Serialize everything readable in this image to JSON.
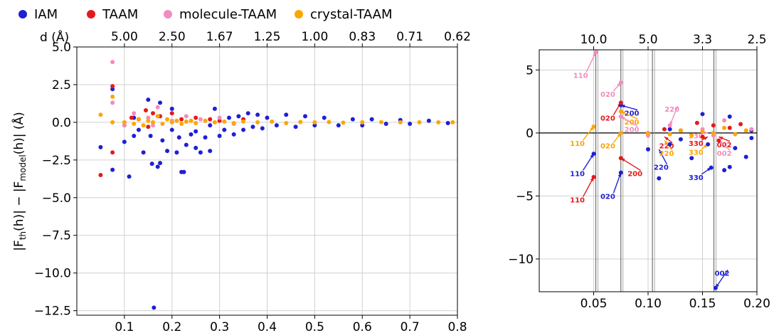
{
  "legend": {
    "entries": [
      {
        "label": "IAM",
        "color": "#1f1fd6"
      },
      {
        "label": "TAAM",
        "color": "#e31a1c"
      },
      {
        "label": "molecule-TAAM",
        "color": "#f28cc0"
      },
      {
        "label": "crystal-TAAM",
        "color": "#ffa500"
      }
    ],
    "placement": "top"
  },
  "chart_data": [
    {
      "type": "scatter",
      "title": "",
      "ylabel_main": "|F",
      "ylabel_sub_th": "th",
      "ylabel_mid": "(h)| − |F",
      "ylabel_sub_model": "model",
      "ylabel_end": "(h)| (Å)",
      "xlabel": "",
      "xlim": [
        0.0,
        0.8
      ],
      "ylim": [
        -12.8,
        5.0
      ],
      "grid": true,
      "x_ticks": [
        "0.1",
        "0.2",
        "0.3",
        "0.4",
        "0.5",
        "0.6",
        "0.7",
        "0.8"
      ],
      "y_ticks": [
        "5.0",
        "2.5",
        "0.0",
        "−2.5",
        "−5.0",
        "−7.5",
        "−10.0",
        "−12.5"
      ],
      "top_axis": {
        "label": "d (Å)",
        "ticks": [
          "5.00",
          "2.50",
          "1.67",
          "1.25",
          "1.00",
          "0.83",
          "0.71",
          "0.62"
        ]
      },
      "series": [
        {
          "name": "IAM",
          "color": "#1f1fd6",
          "points": [
            [
              0.05,
              -1.65
            ],
            [
              0.075,
              -3.15
            ],
            [
              0.075,
              2.2
            ],
            [
              0.1,
              -1.3
            ],
            [
              0.11,
              -3.6
            ],
            [
              0.12,
              -0.9
            ],
            [
              0.12,
              0.3
            ],
            [
              0.13,
              -0.5
            ],
            [
              0.14,
              -2.0
            ],
            [
              0.15,
              1.5
            ],
            [
              0.155,
              -0.9
            ],
            [
              0.158,
              -2.75
            ],
            [
              0.162,
              -12.3
            ],
            [
              0.17,
              -2.95
            ],
            [
              0.175,
              -2.7
            ],
            [
              0.175,
              1.3
            ],
            [
              0.18,
              -1.2
            ],
            [
              0.19,
              -1.9
            ],
            [
              0.2,
              -0.5
            ],
            [
              0.2,
              0.9
            ],
            [
              0.21,
              -2.0
            ],
            [
              0.215,
              -1.0
            ],
            [
              0.22,
              -3.3
            ],
            [
              0.225,
              -3.3
            ],
            [
              0.23,
              -1.5
            ],
            [
              0.24,
              -0.8
            ],
            [
              0.25,
              -0.6
            ],
            [
              0.25,
              -1.7
            ],
            [
              0.26,
              -2.0
            ],
            [
              0.27,
              -1.0
            ],
            [
              0.28,
              -0.2
            ],
            [
              0.28,
              -1.9
            ],
            [
              0.29,
              0.9
            ],
            [
              0.3,
              -0.9
            ],
            [
              0.31,
              -0.5
            ],
            [
              0.32,
              0.3
            ],
            [
              0.33,
              -0.8
            ],
            [
              0.34,
              0.4
            ],
            [
              0.35,
              -0.5
            ],
            [
              0.36,
              0.6
            ],
            [
              0.37,
              -0.3
            ],
            [
              0.38,
              0.5
            ],
            [
              0.39,
              -0.4
            ],
            [
              0.4,
              0.3
            ],
            [
              0.42,
              -0.2
            ],
            [
              0.44,
              0.5
            ],
            [
              0.46,
              -0.3
            ],
            [
              0.48,
              0.4
            ],
            [
              0.5,
              -0.2
            ],
            [
              0.52,
              0.3
            ],
            [
              0.55,
              -0.2
            ],
            [
              0.58,
              0.2
            ],
            [
              0.6,
              -0.2
            ],
            [
              0.62,
              0.2
            ],
            [
              0.65,
              -0.1
            ],
            [
              0.68,
              0.15
            ],
            [
              0.7,
              -0.1
            ],
            [
              0.74,
              0.1
            ],
            [
              0.78,
              -0.05
            ]
          ]
        },
        {
          "name": "TAAM",
          "color": "#e31a1c",
          "points": [
            [
              0.05,
              -3.5
            ],
            [
              0.075,
              2.4
            ],
            [
              0.075,
              -2.0
            ],
            [
              0.1,
              -0.2
            ],
            [
              0.115,
              0.3
            ],
            [
              0.13,
              0.2
            ],
            [
              0.145,
              0.8
            ],
            [
              0.15,
              -0.3
            ],
            [
              0.16,
              0.6
            ],
            [
              0.175,
              0.4
            ],
            [
              0.2,
              0.6
            ],
            [
              0.22,
              0.2
            ],
            [
              0.25,
              0.3
            ],
            [
              0.28,
              0.2
            ],
            [
              0.3,
              0.1
            ],
            [
              0.35,
              0.2
            ]
          ]
        },
        {
          "name": "molecule-TAAM",
          "color": "#f28cc0",
          "points": [
            [
              0.075,
              4.0
            ],
            [
              0.075,
              1.3
            ],
            [
              0.1,
              -0.2
            ],
            [
              0.12,
              0.6
            ],
            [
              0.15,
              0.3
            ],
            [
              0.16,
              -0.2
            ],
            [
              0.17,
              1.0
            ],
            [
              0.2,
              0.1
            ],
            [
              0.23,
              0.4
            ],
            [
              0.26,
              0.2
            ],
            [
              0.3,
              0.3
            ],
            [
              0.33,
              -0.1
            ]
          ]
        },
        {
          "name": "crystal-TAAM",
          "color": "#ffa500",
          "points": [
            [
              0.05,
              0.5
            ],
            [
              0.075,
              1.7
            ],
            [
              0.075,
              0.0
            ],
            [
              0.1,
              0.0
            ],
            [
              0.12,
              -0.1
            ],
            [
              0.13,
              0.2
            ],
            [
              0.14,
              -0.2
            ],
            [
              0.15,
              0.1
            ],
            [
              0.16,
              0.0
            ],
            [
              0.17,
              0.4
            ],
            [
              0.18,
              -0.1
            ],
            [
              0.19,
              0.2
            ],
            [
              0.2,
              0.0
            ],
            [
              0.21,
              0.1
            ],
            [
              0.22,
              -0.1
            ],
            [
              0.23,
              0.05
            ],
            [
              0.24,
              0.1
            ],
            [
              0.25,
              -0.05
            ],
            [
              0.27,
              0.1
            ],
            [
              0.29,
              0.0
            ],
            [
              0.31,
              0.05
            ],
            [
              0.33,
              -0.05
            ],
            [
              0.35,
              0.05
            ],
            [
              0.38,
              0.0
            ],
            [
              0.41,
              0.05
            ],
            [
              0.44,
              -0.05
            ],
            [
              0.47,
              0.02
            ],
            [
              0.5,
              0.0
            ],
            [
              0.53,
              0.02
            ],
            [
              0.56,
              -0.02
            ],
            [
              0.6,
              0.0
            ],
            [
              0.64,
              0.01
            ],
            [
              0.68,
              0.0
            ],
            [
              0.72,
              0.0
            ],
            [
              0.76,
              0.0
            ],
            [
              0.79,
              0.0
            ]
          ]
        }
      ]
    },
    {
      "type": "scatter",
      "title": "",
      "xlim": [
        0.0,
        0.2
      ],
      "ylim": [
        -12.6,
        6.6
      ],
      "grid": true,
      "x_ticks": [
        "0.05",
        "0.10",
        "0.15",
        "0.20"
      ],
      "y_ticks": [
        "5",
        "0",
        "−5",
        "−10"
      ],
      "top_axis": {
        "label": "",
        "ticks": [
          "10.0",
          "5.0",
          "3.3",
          "2.5"
        ]
      },
      "series": [
        {
          "name": "IAM",
          "color": "#1f1fd6",
          "points": [
            [
              0.05,
              -1.65
            ],
            [
              0.075,
              -3.15
            ],
            [
              0.075,
              2.2
            ],
            [
              0.1,
              -1.3
            ],
            [
              0.11,
              -3.6
            ],
            [
              0.12,
              -0.9
            ],
            [
              0.12,
              0.3
            ],
            [
              0.13,
              -0.5
            ],
            [
              0.14,
              -2.0
            ],
            [
              0.15,
              1.5
            ],
            [
              0.155,
              -0.9
            ],
            [
              0.158,
              -2.75
            ],
            [
              0.162,
              -12.3
            ],
            [
              0.17,
              -2.95
            ],
            [
              0.175,
              -2.7
            ],
            [
              0.175,
              1.3
            ],
            [
              0.18,
              -1.2
            ],
            [
              0.19,
              -1.9
            ],
            [
              0.195,
              -0.4
            ],
            [
              0.195,
              0.2
            ]
          ]
        },
        {
          "name": "TAAM",
          "color": "#e31a1c",
          "points": [
            [
              0.05,
              -3.5
            ],
            [
              0.075,
              2.4
            ],
            [
              0.075,
              -2.0
            ],
            [
              0.1,
              -0.2
            ],
            [
              0.115,
              0.3
            ],
            [
              0.13,
              0.2
            ],
            [
              0.145,
              0.8
            ],
            [
              0.15,
              -0.3
            ],
            [
              0.16,
              0.6
            ],
            [
              0.165,
              -0.6
            ],
            [
              0.175,
              0.4
            ],
            [
              0.185,
              0.7
            ]
          ]
        },
        {
          "name": "molecule-TAAM",
          "color": "#f28cc0",
          "points": [
            [
              0.052,
              6.4
            ],
            [
              0.075,
              4.0
            ],
            [
              0.075,
              1.3
            ],
            [
              0.1,
              -0.2
            ],
            [
              0.12,
              0.6
            ],
            [
              0.15,
              0.3
            ],
            [
              0.16,
              -0.2
            ],
            [
              0.17,
              1.0
            ],
            [
              0.195,
              0.3
            ]
          ]
        },
        {
          "name": "crystal-TAAM",
          "color": "#ffa500",
          "points": [
            [
              0.05,
              0.5
            ],
            [
              0.075,
              1.7
            ],
            [
              0.075,
              0.0
            ],
            [
              0.1,
              0.0
            ],
            [
              0.12,
              -0.1
            ],
            [
              0.13,
              0.2
            ],
            [
              0.14,
              -0.2
            ],
            [
              0.15,
              0.1
            ],
            [
              0.16,
              0.0
            ],
            [
              0.17,
              0.4
            ],
            [
              0.18,
              -0.1
            ],
            [
              0.19,
              0.2
            ]
          ]
        }
      ],
      "vlines": [
        0.052,
        0.075,
        0.104,
        0.1605
      ],
      "annotations": [
        {
          "text": "110",
          "color": "#f28cc0",
          "x": 0.052,
          "y": 6.4,
          "tx": 0.038,
          "ty": 4.6
        },
        {
          "text": "020",
          "color": "#f28cc0",
          "x": 0.075,
          "y": 4.0,
          "tx": 0.063,
          "ty": 3.1
        },
        {
          "text": "200",
          "color": "#1f1fd6",
          "x": 0.075,
          "y": 2.2,
          "tx": 0.085,
          "ty": 1.6
        },
        {
          "text": "020",
          "color": "#e31a1c",
          "x": 0.075,
          "y": 2.4,
          "tx": 0.063,
          "ty": 1.2
        },
        {
          "text": "200",
          "color": "#ffa500",
          "x": 0.075,
          "y": 1.7,
          "tx": 0.085,
          "ty": 0.9
        },
        {
          "text": "200",
          "color": "#f28cc0",
          "x": 0.075,
          "y": 1.3,
          "tx": 0.085,
          "ty": 0.3
        },
        {
          "text": "220",
          "color": "#f28cc0",
          "x": 0.12,
          "y": 0.6,
          "tx": 0.122,
          "ty": 1.9
        },
        {
          "text": "110",
          "color": "#ffa500",
          "x": 0.05,
          "y": 0.5,
          "tx": 0.035,
          "ty": -0.8
        },
        {
          "text": "020",
          "color": "#ffa500",
          "x": 0.075,
          "y": 0.0,
          "tx": 0.063,
          "ty": -1.0
        },
        {
          "text": "110",
          "color": "#1f1fd6",
          "x": 0.05,
          "y": -1.65,
          "tx": 0.035,
          "ty": -3.2
        },
        {
          "text": "110",
          "color": "#e31a1c",
          "x": 0.05,
          "y": -3.5,
          "tx": 0.035,
          "ty": -5.3
        },
        {
          "text": "020",
          "color": "#1f1fd6",
          "x": 0.075,
          "y": -3.15,
          "tx": 0.063,
          "ty": -5.0
        },
        {
          "text": "200",
          "color": "#e31a1c",
          "x": 0.075,
          "y": -2.0,
          "tx": 0.088,
          "ty": -3.2
        },
        {
          "text": "220",
          "color": "#1f1fd6",
          "x": 0.11,
          "y": -1.3,
          "tx": 0.112,
          "ty": -2.7
        },
        {
          "text": "220",
          "color": "#e31a1c",
          "x": 0.115,
          "y": -0.3,
          "tx": 0.117,
          "ty": -1.0
        },
        {
          "text": "220",
          "color": "#ffa500",
          "x": 0.115,
          "y": -0.6,
          "tx": 0.117,
          "ty": -1.6
        },
        {
          "text": "330",
          "color": "#e31a1c",
          "x": 0.155,
          "y": -0.3,
          "tx": 0.144,
          "ty": -0.8
        },
        {
          "text": "330",
          "color": "#ffa500",
          "x": 0.155,
          "y": -0.9,
          "tx": 0.144,
          "ty": -1.5
        },
        {
          "text": "330",
          "color": "#1f1fd6",
          "x": 0.158,
          "y": -2.75,
          "tx": 0.144,
          "ty": -3.5
        },
        {
          "text": "330",
          "color": "#f28cc0",
          "x": 0.155,
          "y": 0.0,
          "tx": 0.144,
          "ty": -0.2
        },
        {
          "text": "002",
          "color": "#e31a1c",
          "x": 0.165,
          "y": -0.3,
          "tx": 0.17,
          "ty": -0.9
        },
        {
          "text": "002",
          "color": "#f28cc0",
          "x": 0.165,
          "y": -0.6,
          "tx": 0.17,
          "ty": -1.6
        },
        {
          "text": "002",
          "color": "#1f1fd6",
          "x": 0.162,
          "y": -12.3,
          "tx": 0.168,
          "ty": -11.1
        }
      ]
    }
  ]
}
